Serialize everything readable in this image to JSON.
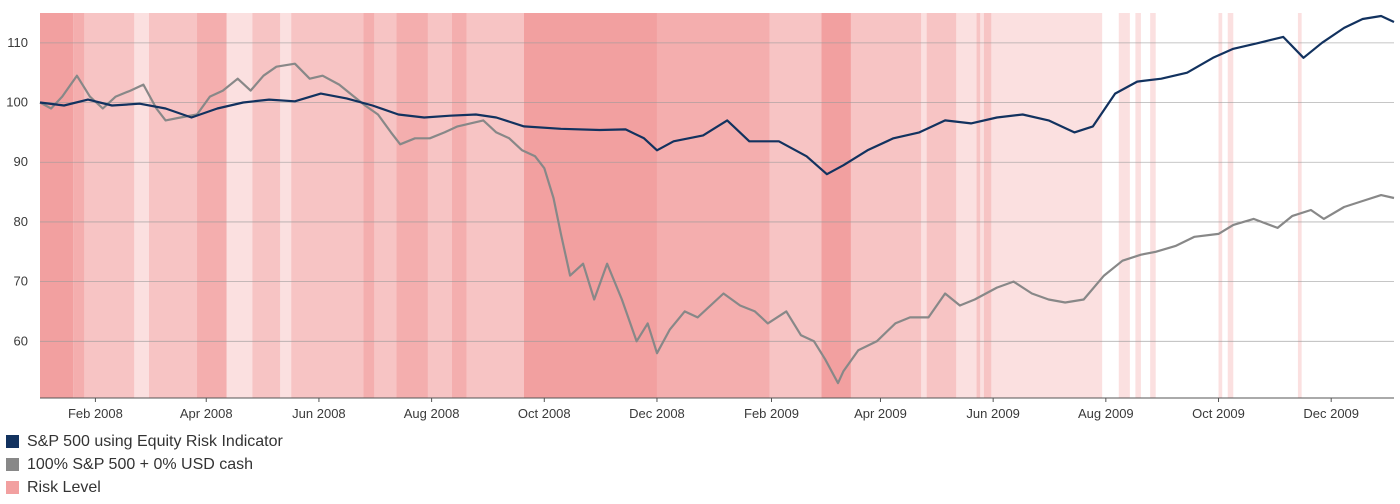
{
  "chart_data": {
    "type": "line",
    "title": "",
    "xlabel": "",
    "ylabel": "",
    "xlim": [
      "2008-01-02",
      "2010-01-04"
    ],
    "ylim": [
      50.5,
      115
    ],
    "yticks": [
      60,
      70,
      80,
      90,
      100,
      110
    ],
    "xticks": [
      {
        "date": "2008-02-01",
        "label": "Feb 2008"
      },
      {
        "date": "2008-04-01",
        "label": "Apr 2008"
      },
      {
        "date": "2008-06-01",
        "label": "Jun 2008"
      },
      {
        "date": "2008-08-01",
        "label": "Aug 2008"
      },
      {
        "date": "2008-10-01",
        "label": "Oct 2008"
      },
      {
        "date": "2008-12-01",
        "label": "Dec 2008"
      },
      {
        "date": "2009-02-01",
        "label": "Feb 2009"
      },
      {
        "date": "2009-04-01",
        "label": "Apr 2009"
      },
      {
        "date": "2009-06-01",
        "label": "Jun 2009"
      },
      {
        "date": "2009-08-01",
        "label": "Aug 2009"
      },
      {
        "date": "2009-10-01",
        "label": "Oct 2009"
      },
      {
        "date": "2009-12-01",
        "label": "Dec 2009"
      }
    ],
    "grid": true,
    "legend_position": "bottom-left",
    "series": [
      {
        "name": "S&P 500 using Equity Risk Indicator",
        "color": "#12325f",
        "points": [
          [
            "2008-01-02",
            100
          ],
          [
            "2008-01-15",
            99.5
          ],
          [
            "2008-01-28",
            100.5
          ],
          [
            "2008-02-10",
            99.5
          ],
          [
            "2008-02-25",
            99.8
          ],
          [
            "2008-03-10",
            99
          ],
          [
            "2008-03-24",
            97.5
          ],
          [
            "2008-04-07",
            99
          ],
          [
            "2008-04-21",
            100
          ],
          [
            "2008-05-05",
            100.5
          ],
          [
            "2008-05-19",
            100.2
          ],
          [
            "2008-06-02",
            101.5
          ],
          [
            "2008-06-16",
            100.7
          ],
          [
            "2008-06-30",
            99.5
          ],
          [
            "2008-07-14",
            98
          ],
          [
            "2008-07-28",
            97.5
          ],
          [
            "2008-08-11",
            97.8
          ],
          [
            "2008-08-25",
            98
          ],
          [
            "2008-09-05",
            97.5
          ],
          [
            "2008-09-20",
            96
          ],
          [
            "2008-10-10",
            95.6
          ],
          [
            "2008-10-31",
            95.4
          ],
          [
            "2008-11-14",
            95.5
          ],
          [
            "2008-11-24",
            94
          ],
          [
            "2008-12-01",
            92
          ],
          [
            "2008-12-10",
            93.5
          ],
          [
            "2008-12-26",
            94.5
          ],
          [
            "2009-01-08",
            97
          ],
          [
            "2009-01-20",
            93.5
          ],
          [
            "2009-02-05",
            93.5
          ],
          [
            "2009-02-20",
            91
          ],
          [
            "2009-03-03",
            88
          ],
          [
            "2009-03-12",
            89.5
          ],
          [
            "2009-03-25",
            92
          ],
          [
            "2009-04-08",
            94
          ],
          [
            "2009-04-22",
            95
          ],
          [
            "2009-05-06",
            97
          ],
          [
            "2009-05-20",
            96.5
          ],
          [
            "2009-06-03",
            97.5
          ],
          [
            "2009-06-17",
            98
          ],
          [
            "2009-07-01",
            97
          ],
          [
            "2009-07-15",
            95
          ],
          [
            "2009-07-25",
            96
          ],
          [
            "2009-08-06",
            101.5
          ],
          [
            "2009-08-18",
            103.5
          ],
          [
            "2009-08-31",
            104
          ],
          [
            "2009-09-14",
            105
          ],
          [
            "2009-09-28",
            107.5
          ],
          [
            "2009-10-09",
            109
          ],
          [
            "2009-10-23",
            110
          ],
          [
            "2009-11-05",
            111
          ],
          [
            "2009-11-16",
            107.5
          ],
          [
            "2009-11-26",
            110
          ],
          [
            "2009-12-08",
            112.5
          ],
          [
            "2009-12-18",
            114
          ],
          [
            "2009-12-28",
            114.5
          ],
          [
            "2010-01-04",
            113.5
          ]
        ]
      },
      {
        "name": "100% S&P 500 + 0% USD cash",
        "color": "#888888",
        "points": [
          [
            "2008-01-02",
            100
          ],
          [
            "2008-01-08",
            99
          ],
          [
            "2008-01-14",
            101
          ],
          [
            "2008-01-22",
            104.5
          ],
          [
            "2008-01-29",
            101
          ],
          [
            "2008-02-05",
            99
          ],
          [
            "2008-02-12",
            101
          ],
          [
            "2008-02-20",
            102
          ],
          [
            "2008-02-27",
            103
          ],
          [
            "2008-03-05",
            99
          ],
          [
            "2008-03-10",
            97
          ],
          [
            "2008-03-18",
            97.5
          ],
          [
            "2008-03-27",
            98
          ],
          [
            "2008-04-03",
            101
          ],
          [
            "2008-04-10",
            102
          ],
          [
            "2008-04-18",
            104
          ],
          [
            "2008-04-25",
            102
          ],
          [
            "2008-05-02",
            104.5
          ],
          [
            "2008-05-09",
            106
          ],
          [
            "2008-05-19",
            106.5
          ],
          [
            "2008-05-27",
            104
          ],
          [
            "2008-06-03",
            104.5
          ],
          [
            "2008-06-12",
            103
          ],
          [
            "2008-06-20",
            101
          ],
          [
            "2008-06-26",
            99.5
          ],
          [
            "2008-07-03",
            98
          ],
          [
            "2008-07-10",
            95
          ],
          [
            "2008-07-15",
            93
          ],
          [
            "2008-07-23",
            94
          ],
          [
            "2008-07-31",
            94
          ],
          [
            "2008-08-08",
            95
          ],
          [
            "2008-08-15",
            96
          ],
          [
            "2008-08-22",
            96.5
          ],
          [
            "2008-08-29",
            97
          ],
          [
            "2008-09-05",
            95
          ],
          [
            "2008-09-12",
            94
          ],
          [
            "2008-09-19",
            92
          ],
          [
            "2008-09-26",
            91
          ],
          [
            "2008-10-01",
            89
          ],
          [
            "2008-10-06",
            84
          ],
          [
            "2008-10-10",
            78
          ],
          [
            "2008-10-15",
            71
          ],
          [
            "2008-10-22",
            73
          ],
          [
            "2008-10-28",
            67
          ],
          [
            "2008-11-04",
            73
          ],
          [
            "2008-11-12",
            67
          ],
          [
            "2008-11-20",
            60
          ],
          [
            "2008-11-26",
            63
          ],
          [
            "2008-12-01",
            58
          ],
          [
            "2008-12-08",
            62
          ],
          [
            "2008-12-16",
            65
          ],
          [
            "2008-12-23",
            64
          ],
          [
            "2009-01-06",
            68
          ],
          [
            "2009-01-15",
            66
          ],
          [
            "2009-01-23",
            65
          ],
          [
            "2009-01-30",
            63
          ],
          [
            "2009-02-09",
            65
          ],
          [
            "2009-02-17",
            61
          ],
          [
            "2009-02-24",
            60
          ],
          [
            "2009-03-02",
            57
          ],
          [
            "2009-03-09",
            53
          ],
          [
            "2009-03-12",
            55
          ],
          [
            "2009-03-20",
            58.5
          ],
          [
            "2009-03-30",
            60
          ],
          [
            "2009-04-09",
            63
          ],
          [
            "2009-04-17",
            64
          ],
          [
            "2009-04-27",
            64
          ],
          [
            "2009-05-06",
            68
          ],
          [
            "2009-05-14",
            66
          ],
          [
            "2009-05-22",
            67
          ],
          [
            "2009-06-03",
            69
          ],
          [
            "2009-06-12",
            70
          ],
          [
            "2009-06-22",
            68
          ],
          [
            "2009-07-01",
            67
          ],
          [
            "2009-07-10",
            66.5
          ],
          [
            "2009-07-20",
            67
          ],
          [
            "2009-07-31",
            71
          ],
          [
            "2009-08-10",
            73.5
          ],
          [
            "2009-08-20",
            74.5
          ],
          [
            "2009-08-28",
            75
          ],
          [
            "2009-09-08",
            76
          ],
          [
            "2009-09-18",
            77.5
          ],
          [
            "2009-10-01",
            78
          ],
          [
            "2009-10-09",
            79.5
          ],
          [
            "2009-10-20",
            80.5
          ],
          [
            "2009-11-02",
            79
          ],
          [
            "2009-11-10",
            81
          ],
          [
            "2009-11-20",
            82
          ],
          [
            "2009-11-27",
            80.5
          ],
          [
            "2009-12-08",
            82.5
          ],
          [
            "2009-12-18",
            83.5
          ],
          [
            "2009-12-28",
            84.5
          ],
          [
            "2010-01-04",
            84
          ]
        ]
      }
    ],
    "risk_level": {
      "name": "Risk Level",
      "color": "#f2a0a0",
      "bands": [
        [
          "2008-01-02",
          "2008-01-20",
          4
        ],
        [
          "2008-01-20",
          "2008-01-26",
          3
        ],
        [
          "2008-01-26",
          "2008-02-22",
          2
        ],
        [
          "2008-02-22",
          "2008-03-01",
          1
        ],
        [
          "2008-03-01",
          "2008-03-27",
          2
        ],
        [
          "2008-03-27",
          "2008-04-12",
          3
        ],
        [
          "2008-04-12",
          "2008-04-26",
          1
        ],
        [
          "2008-04-26",
          "2008-05-11",
          2
        ],
        [
          "2008-05-11",
          "2008-05-17",
          1
        ],
        [
          "2008-05-17",
          "2008-06-25",
          2
        ],
        [
          "2008-06-25",
          "2008-07-01",
          3
        ],
        [
          "2008-07-01",
          "2008-07-13",
          2
        ],
        [
          "2008-07-13",
          "2008-07-30",
          3
        ],
        [
          "2008-07-30",
          "2008-08-12",
          2
        ],
        [
          "2008-08-12",
          "2008-08-20",
          3
        ],
        [
          "2008-08-20",
          "2008-09-20",
          2
        ],
        [
          "2008-09-20",
          "2008-12-01",
          4
        ],
        [
          "2008-12-01",
          "2009-01-31",
          3
        ],
        [
          "2009-01-31",
          "2009-02-28",
          2
        ],
        [
          "2009-02-28",
          "2009-03-16",
          4
        ],
        [
          "2009-03-16",
          "2009-04-23",
          2
        ],
        [
          "2009-04-23",
          "2009-04-26",
          1
        ],
        [
          "2009-04-26",
          "2009-05-12",
          2
        ],
        [
          "2009-05-12",
          "2009-05-23",
          1
        ],
        [
          "2009-05-23",
          "2009-05-25",
          2
        ],
        [
          "2009-05-25",
          "2009-05-27",
          1
        ],
        [
          "2009-05-27",
          "2009-05-31",
          2
        ],
        [
          "2009-05-31",
          "2009-07-30",
          1
        ],
        [
          "2009-08-08",
          "2009-08-14",
          1
        ],
        [
          "2009-08-17",
          "2009-08-20",
          1
        ],
        [
          "2009-08-25",
          "2009-08-28",
          1
        ],
        [
          "2009-10-01",
          "2009-10-03",
          1
        ],
        [
          "2009-10-06",
          "2009-10-09",
          1
        ],
        [
          "2009-11-13",
          "2009-11-15",
          1
        ]
      ]
    }
  }
}
